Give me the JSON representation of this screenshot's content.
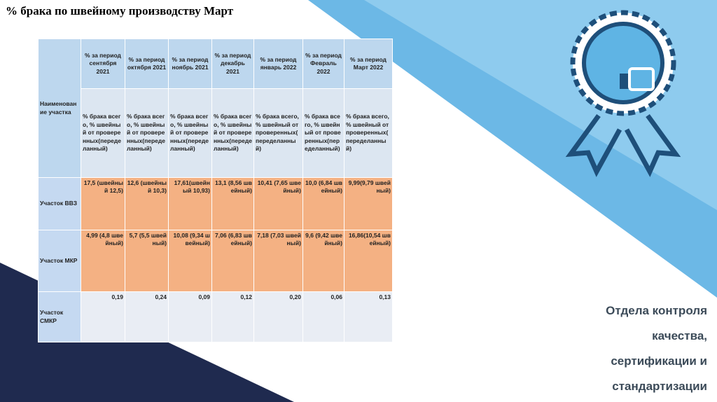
{
  "header": {
    "title": "% брака по швейному производству Март"
  },
  "table": {
    "corner": "Наименование участка",
    "periods": [
      "% за период сентября 2021",
      "% за период октября 2021",
      "% за период ноябрь 2021",
      "% за период декабрь 2021",
      "% за период январь 2022",
      "% за период Февраль 2022",
      "% за период Март 2022"
    ],
    "subheaders": [
      "% брака всего, % швейный от проверенных(переделанный)",
      "% брака всего, % швейный от проверенных(переделанный)",
      "% брака всего, % швейный от проверенных(переделанный)",
      "% брака всего, % швейный от проверенных(переделанный)",
      "% брака всего, % швейный от проверенных( переделанный)",
      "% брака всего, % швейный от проверенных(переделанный)",
      "% брака всего, % швейный от проверенных( переделанный)"
    ],
    "rows": [
      {
        "label": "Участок ВВЗ",
        "cells": [
          "17,5 (швейный 12,5)",
          "12,6 (швейный 10,3)",
          "17,61(швейный 10,93)",
          "13,1 (8,56 швейный)",
          "10,41 (7,65 швейный)",
          "10,0 (6,84 швейный)",
          "9,99(9,79 швейный)"
        ]
      },
      {
        "label": "Участок МКР",
        "cells": [
          "4,99 (4,8 швейный)",
          "5,7 (5,5 швейный)",
          "10,08 (9,34 швейный)",
          "7,06 (6,83 швейный)",
          "7,18 (7,03 швейный)",
          "9,6 (9,42 швейный)",
          "16,86(10,54 швейный)"
        ]
      },
      {
        "label": "Участок СМКР",
        "cells": [
          "0,19",
          "0,24",
          "0,09",
          "0,12",
          "0,20",
          "0,06",
          "0,13"
        ]
      }
    ]
  },
  "side_text": [
    "Отдела контроля",
    "качества,",
    "сертификации и",
    "стандартизации"
  ]
}
